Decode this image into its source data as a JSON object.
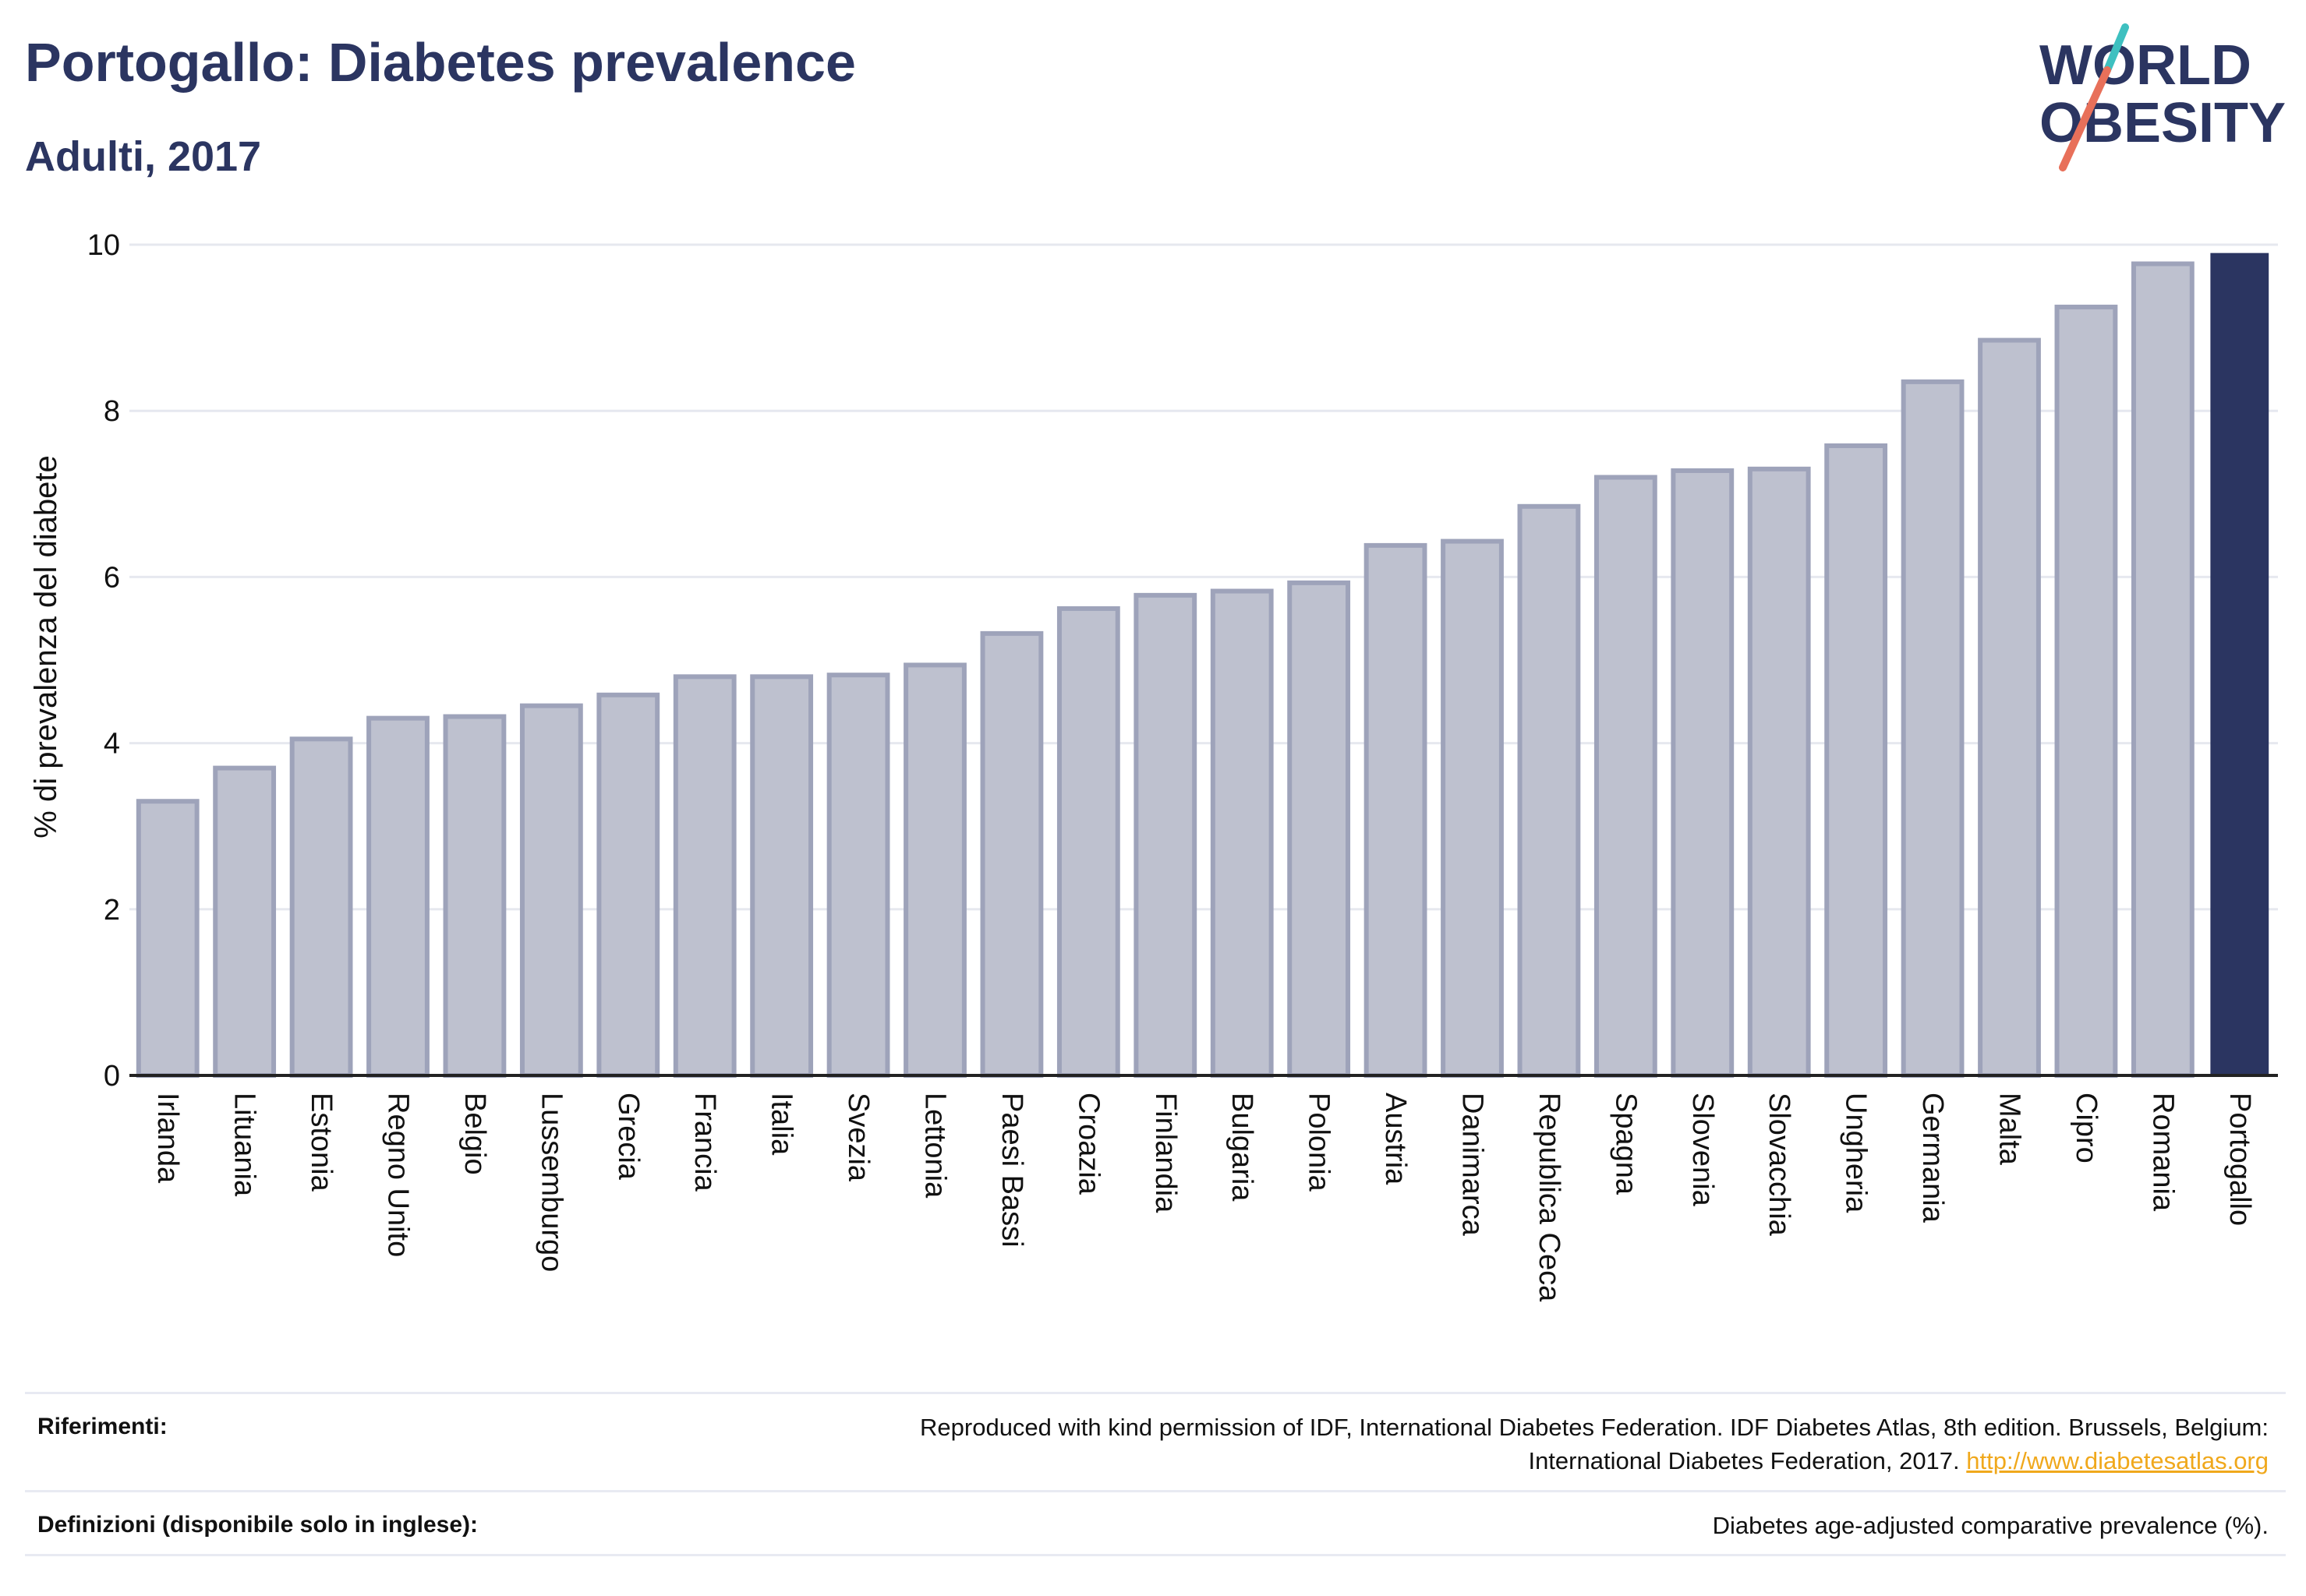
{
  "header": {
    "title": "Portogallo: Diabetes prevalence",
    "subtitle": "Adulti, 2017"
  },
  "logo": {
    "line1": "WORLD",
    "line2": "OBESITY",
    "colors": {
      "text": "#2b3561",
      "slash_top": "#3ec0c0",
      "slash_bottom": "#e8705a"
    }
  },
  "colors": {
    "bar_fill": "#bec1cf",
    "bar_stroke": "#9ea3ba",
    "highlight": "#2b3561",
    "grid": "#e6e8ef",
    "axis": "#222222"
  },
  "chart_data": {
    "type": "bar",
    "title": "Portogallo: Diabetes prevalence",
    "subtitle": "Adulti, 2017",
    "ylabel": "% di prevalenza del diabete",
    "xlabel": "",
    "ylim": [
      0,
      10
    ],
    "yticks": [
      0,
      2,
      4,
      6,
      8,
      10
    ],
    "grid": true,
    "highlight": "Portogallo",
    "categories": [
      "Irlanda",
      "Lituania",
      "Estonia",
      "Regno Unito",
      "Belgio",
      "Lussemburgo",
      "Grecia",
      "Francia",
      "Italia",
      "Svezia",
      "Lettonia",
      "Paesi Bassi",
      "Croazia",
      "Finlandia",
      "Bulgaria",
      "Polonia",
      "Austria",
      "Danimarca",
      "Republica Ceca",
      "Spagna",
      "Slovenia",
      "Slovacchia",
      "Ungheria",
      "Germania",
      "Malta",
      "Cipro",
      "Romania",
      "Portogallo"
    ],
    "values": [
      3.3,
      3.7,
      4.05,
      4.3,
      4.32,
      4.45,
      4.58,
      4.8,
      4.8,
      4.82,
      4.94,
      5.32,
      5.62,
      5.78,
      5.83,
      5.93,
      6.38,
      6.43,
      6.85,
      7.2,
      7.28,
      7.3,
      7.58,
      8.35,
      8.85,
      9.25,
      9.77,
      9.9
    ]
  },
  "footer": {
    "references_label": "Riferimenti:",
    "references_line1": "Reproduced with kind permission of IDF, International Diabetes Federation. IDF Diabetes Atlas, 8th edition. Brussels, Belgium:",
    "references_line2": "International Diabetes Federation, 2017.",
    "references_link": "http://www.diabetesatlas.org",
    "definitions_label": "Definizioni (disponibile solo in inglese):",
    "definitions_text": "Diabetes age-adjusted comparative prevalence (%)."
  }
}
